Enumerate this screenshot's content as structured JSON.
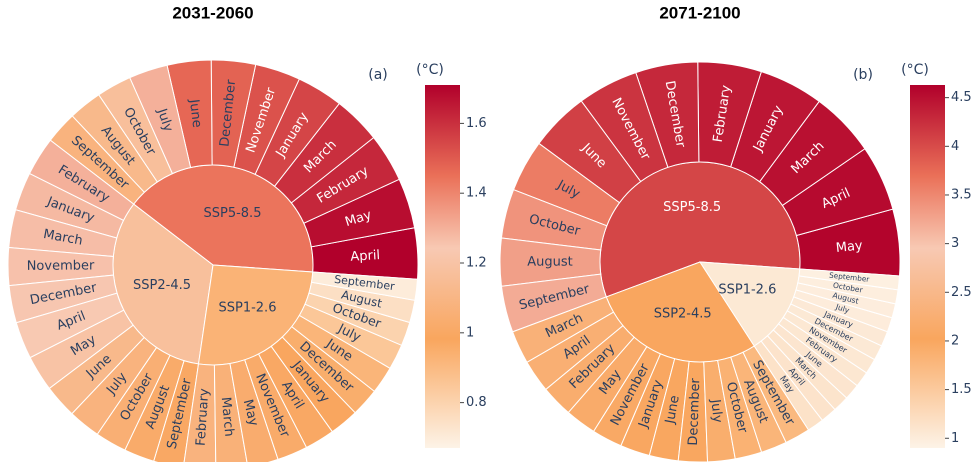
{
  "chart_data": [
    {
      "type": "sunburst",
      "title": "2031-2060",
      "panel_label": "(a)",
      "colorbar_title": "(°C)",
      "clim": [
        0.67,
        1.71
      ],
      "cticks": [
        0.8,
        1,
        1.2,
        1.4,
        1.6
      ],
      "colorscale": [
        [
          0,
          "#fdf3e7"
        ],
        [
          0.3,
          "#f9a65e"
        ],
        [
          0.55,
          "#f8c9b3"
        ],
        [
          0.75,
          "#ea7058"
        ],
        [
          1,
          "#b1002b"
        ]
      ],
      "series": [
        {
          "name": "SSP5-8.5",
          "categories": [
            "April",
            "May",
            "February",
            "March",
            "January",
            "November",
            "December",
            "June",
            "July",
            "October",
            "August",
            "September"
          ],
          "values": [
            1.71,
            1.68,
            1.62,
            1.6,
            1.55,
            1.52,
            1.48,
            1.47,
            1.3,
            1.17,
            1.12,
            1.08
          ]
        },
        {
          "name": "SSP2-4.5",
          "categories": [
            "February",
            "January",
            "March",
            "November",
            "December",
            "April",
            "May",
            "June",
            "July",
            "October",
            "August",
            "September"
          ],
          "values": [
            1.3,
            1.28,
            1.27,
            1.26,
            1.25,
            1.24,
            1.2,
            1.12,
            1.08,
            1.05,
            1.02,
            1.0
          ]
        },
        {
          "name": "SSP1-2.6",
          "categories": [
            "February",
            "March",
            "May",
            "November",
            "April",
            "January",
            "December",
            "June",
            "July",
            "October",
            "August",
            "September"
          ],
          "values": [
            1.08,
            1.06,
            1.03,
            1.02,
            1.0,
            0.98,
            0.95,
            0.92,
            0.85,
            0.8,
            0.75,
            0.7
          ]
        }
      ]
    },
    {
      "type": "sunburst",
      "title": "2071-2100",
      "panel_label": "(b)",
      "colorbar_title": "(°C)",
      "clim": [
        0.9,
        4.63
      ],
      "cticks": [
        1,
        1.5,
        2,
        2.5,
        3,
        3.5,
        4,
        4.5
      ],
      "colorscale": [
        [
          0,
          "#fdf3e7"
        ],
        [
          0.3,
          "#f9a65e"
        ],
        [
          0.55,
          "#f8c9b3"
        ],
        [
          0.75,
          "#ea7058"
        ],
        [
          1,
          "#b1002b"
        ]
      ],
      "series": [
        {
          "name": "SSP5-8.5",
          "categories": [
            "May",
            "April",
            "March",
            "January",
            "February",
            "December",
            "November",
            "June",
            "July",
            "October",
            "August",
            "September"
          ],
          "values": [
            4.6,
            4.55,
            4.5,
            4.45,
            4.4,
            4.3,
            4.2,
            4.1,
            3.6,
            3.4,
            3.3,
            3.2
          ]
        },
        {
          "name": "SSP2-4.5",
          "categories": [
            "March",
            "April",
            "February",
            "May",
            "November",
            "January",
            "June",
            "December",
            "July",
            "October",
            "August",
            "September"
          ],
          "values": [
            2.3,
            2.25,
            2.2,
            2.15,
            2.1,
            2.05,
            2.0,
            2.0,
            1.9,
            1.85,
            1.8,
            1.75
          ]
        },
        {
          "name": "SSP1-2.6",
          "categories": [
            "May",
            "April",
            "March",
            "June",
            "February",
            "November",
            "December",
            "January",
            "July",
            "August",
            "October",
            "September"
          ],
          "values": [
            1.15,
            1.13,
            1.12,
            1.1,
            1.08,
            1.06,
            1.05,
            1.04,
            1.0,
            0.98,
            0.97,
            0.95
          ]
        }
      ]
    }
  ]
}
